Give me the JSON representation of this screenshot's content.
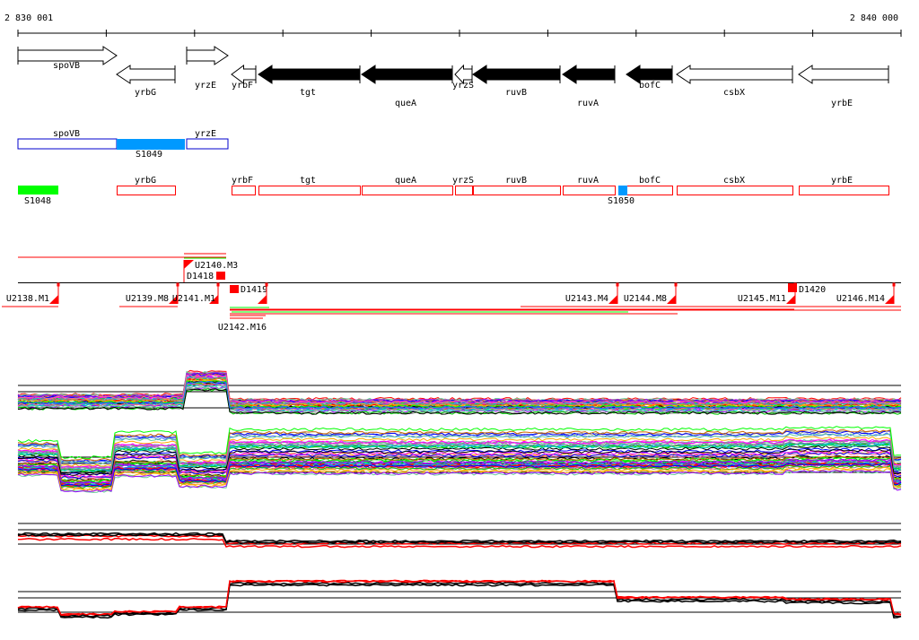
{
  "ruler": {
    "start_label": "2 830 001",
    "end_label": "2 840 000"
  },
  "genes": [
    {
      "name": "spoVB",
      "strand": "+",
      "fill": "white"
    },
    {
      "name": "yrbG",
      "strand": "-",
      "fill": "white"
    },
    {
      "name": "yrzE",
      "strand": "+",
      "fill": "white"
    },
    {
      "name": "yrbF",
      "strand": "-",
      "fill": "white"
    },
    {
      "name": "tgt",
      "strand": "-",
      "fill": "black"
    },
    {
      "name": "queA",
      "strand": "-",
      "fill": "black"
    },
    {
      "name": "yrzS",
      "strand": "-",
      "fill": "white"
    },
    {
      "name": "ruvB",
      "strand": "-",
      "fill": "black"
    },
    {
      "name": "ruvA",
      "strand": "-",
      "fill": "black"
    },
    {
      "name": "bofC",
      "strand": "-",
      "fill": "black"
    },
    {
      "name": "csbX",
      "strand": "-",
      "fill": "white"
    },
    {
      "name": "yrbE",
      "strand": "-",
      "fill": "white"
    }
  ],
  "forward_track": {
    "boxes": [
      "spoVB",
      "yrzE"
    ],
    "segment": {
      "name": "S1049",
      "color": "#0099ff"
    }
  },
  "reverse_track": {
    "segment": {
      "name": "S1048",
      "color": "#00ff00"
    },
    "boxes": [
      "yrbG",
      "yrbF",
      "tgt",
      "queA",
      "yrzS",
      "ruvB",
      "ruvA",
      "bofC",
      "csbX",
      "yrbE"
    ],
    "segment2": {
      "name": "S1050",
      "color": "#0099ff"
    }
  },
  "upstream_markers": [
    "U2140.M3",
    "D1418",
    "D1419",
    "D1420"
  ],
  "lower_markers": [
    "U2138.M1",
    "U2139.M8",
    "U2141.M1",
    "U2142.M16",
    "U2143.M4",
    "U2144.M8",
    "U2145.M11",
    "U2146.M14"
  ],
  "colors": {
    "marker": "#ff0000",
    "forward_box": "#0000cc",
    "reverse_box": "#ff0000",
    "highlight": "#0099ff",
    "green": "#00ff00"
  },
  "chart_data": {
    "type": "line",
    "panels": [
      "expression-profiles-forward-1",
      "expression-profiles-forward-2",
      "summary-profile-1",
      "summary-profile-2"
    ],
    "x_range": [
      "2 830 001",
      "2 840 000"
    ]
  }
}
